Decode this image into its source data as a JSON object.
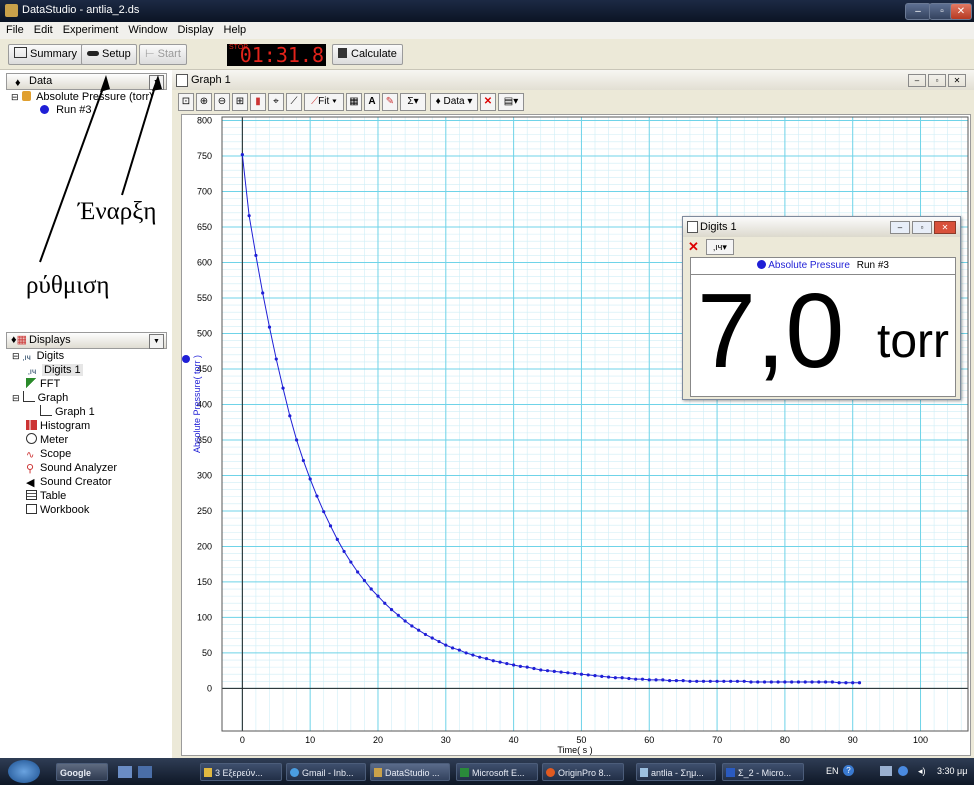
{
  "window": {
    "title": "DataStudio - antlia_2.ds"
  },
  "menu": [
    "File",
    "Edit",
    "Experiment",
    "Window",
    "Display",
    "Help"
  ],
  "toolbar": {
    "summary": "Summary",
    "setup": "Setup",
    "start": "Start",
    "stop_label": "STOP",
    "timer": "01:31.8",
    "calculate": "Calculate"
  },
  "data_panel": {
    "header": "Data",
    "item": "Absolute Pressure (torr)",
    "run": "Run #3"
  },
  "displays_panel": {
    "header": "Displays",
    "items": [
      {
        "label": "Digits",
        "icon": "digits-icon"
      },
      {
        "label": "Digits 1",
        "icon": "digits-icon"
      },
      {
        "label": "FFT",
        "icon": "fft-icon"
      },
      {
        "label": "Graph",
        "icon": "graph-icon"
      },
      {
        "label": "Graph 1",
        "icon": "graph-icon"
      },
      {
        "label": "Histogram",
        "icon": "histogram-icon"
      },
      {
        "label": "Meter",
        "icon": "meter-icon"
      },
      {
        "label": "Scope",
        "icon": "scope-icon"
      },
      {
        "label": "Sound Analyzer",
        "icon": "sound-analyzer-icon"
      },
      {
        "label": "Sound Creator",
        "icon": "sound-creator-icon"
      },
      {
        "label": "Table",
        "icon": "table-icon"
      },
      {
        "label": "Workbook",
        "icon": "workbook-icon"
      }
    ]
  },
  "graph_window": {
    "title": "Graph 1",
    "fit_label": "Fit",
    "data_label": "Data",
    "legend": "Run #3"
  },
  "digits_window": {
    "title": "Digits 1",
    "legend_label": "Absolute Pressure",
    "run": "Run #3",
    "value": "7,0",
    "unit": "torr"
  },
  "annotations": {
    "start_label": "Έναρξη",
    "setup_label": "ρύθμιση"
  },
  "taskbar": {
    "google": "Google",
    "items": [
      "3 Εξερεύν...",
      "Gmail - Inb...",
      "DataStudio ...",
      "Microsoft E...",
      "OriginPro 8...",
      "antlia - Σημ...",
      "Σ_2 - Micro..."
    ],
    "lang": "EN",
    "clock": "3:30 μμ"
  },
  "colors": {
    "series": "#1f1fd6",
    "grid": "#6fd3e8",
    "timer": "#e2231a"
  },
  "chart_data": {
    "type": "line",
    "xlabel": "Time( s )",
    "ylabel": "Absolute Pressure( torr )",
    "xlim": [
      -3,
      107
    ],
    "ylim": [
      -60,
      805
    ],
    "xticks": [
      0,
      10,
      20,
      30,
      40,
      50,
      60,
      70,
      80,
      90,
      100
    ],
    "yticks": [
      0,
      50,
      100,
      150,
      200,
      250,
      300,
      350,
      400,
      450,
      500,
      550,
      600,
      650,
      700,
      750,
      800
    ],
    "grid": true,
    "legend": "top-right",
    "series": [
      {
        "name": "Run #3",
        "x": [
          0,
          1,
          2,
          3,
          4,
          5,
          6,
          7,
          8,
          9,
          10,
          11,
          12,
          13,
          14,
          15,
          16,
          17,
          18,
          19,
          20,
          21,
          22,
          23,
          24,
          25,
          26,
          27,
          28,
          29,
          30,
          31,
          32,
          33,
          34,
          35,
          36,
          37,
          38,
          39,
          40,
          41,
          42,
          43,
          44,
          45,
          46,
          47,
          48,
          49,
          50,
          51,
          52,
          53,
          54,
          55,
          56,
          57,
          58,
          59,
          60,
          61,
          62,
          63,
          64,
          65,
          66,
          67,
          68,
          69,
          70,
          71,
          72,
          73,
          74,
          75,
          76,
          77,
          78,
          79,
          80,
          81,
          82,
          83,
          84,
          85,
          86,
          87,
          88,
          89,
          90,
          91
        ],
        "y": [
          752,
          666,
          610,
          557,
          509,
          464,
          423,
          384,
          350,
          321,
          295,
          271,
          249,
          229,
          210,
          193,
          178,
          164,
          152,
          140,
          130,
          120,
          111,
          103,
          95,
          88,
          82,
          76,
          71,
          66,
          61,
          57,
          54,
          50,
          47,
          44,
          42,
          39,
          37,
          35,
          33,
          31,
          30,
          28,
          26,
          25,
          24,
          23,
          22,
          21,
          20,
          19,
          18,
          17,
          16,
          15,
          15,
          14,
          13,
          13,
          12,
          12,
          12,
          11,
          11,
          11,
          10,
          10,
          10,
          10,
          10,
          10,
          10,
          10,
          10,
          9,
          9,
          9,
          9,
          9,
          9,
          9,
          9,
          9,
          9,
          9,
          9,
          9,
          8,
          8,
          8,
          8
        ]
      }
    ]
  }
}
